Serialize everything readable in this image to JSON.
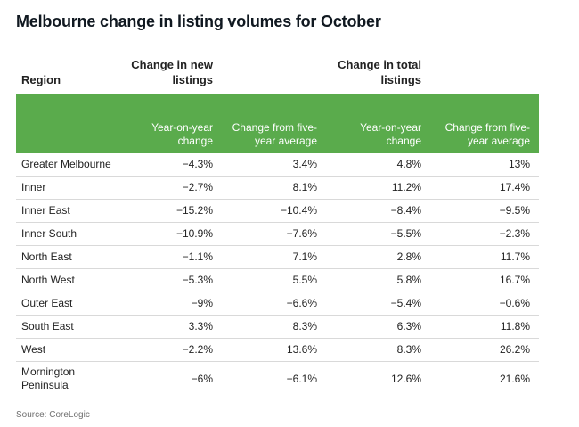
{
  "title": "Melbourne change in listing volumes for October",
  "source": "Source: CoreLogic",
  "chart_data": {
    "type": "table",
    "title": "Melbourne change in listing volumes for October",
    "columns": {
      "region": "Region",
      "group_new": "Change in new listings",
      "group_total": "Change in total listings",
      "new_yoy": "Year-on-year change",
      "new_5yr": "Change from five-year average",
      "total_yoy": "Year-on-year change",
      "total_5yr": "Change from five-year average"
    },
    "rows": [
      {
        "region": "Greater Melbourne",
        "new_yoy": "−4.3%",
        "new_5yr": "3.4%",
        "total_yoy": "4.8%",
        "total_5yr": "13%"
      },
      {
        "region": "Inner",
        "new_yoy": "−2.7%",
        "new_5yr": "8.1%",
        "total_yoy": "11.2%",
        "total_5yr": "17.4%"
      },
      {
        "region": "Inner East",
        "new_yoy": "−15.2%",
        "new_5yr": "−10.4%",
        "total_yoy": "−8.4%",
        "total_5yr": "−9.5%"
      },
      {
        "region": "Inner South",
        "new_yoy": "−10.9%",
        "new_5yr": "−7.6%",
        "total_yoy": "−5.5%",
        "total_5yr": "−2.3%"
      },
      {
        "region": "North East",
        "new_yoy": "−1.1%",
        "new_5yr": "7.1%",
        "total_yoy": "2.8%",
        "total_5yr": "11.7%"
      },
      {
        "region": "North West",
        "new_yoy": "−5.3%",
        "new_5yr": "5.5%",
        "total_yoy": "5.8%",
        "total_5yr": "16.7%"
      },
      {
        "region": "Outer East",
        "new_yoy": "−9%",
        "new_5yr": "−6.6%",
        "total_yoy": "−5.4%",
        "total_5yr": "−0.6%"
      },
      {
        "region": "South East",
        "new_yoy": "3.3%",
        "new_5yr": "8.3%",
        "total_yoy": "6.3%",
        "total_5yr": "11.8%"
      },
      {
        "region": "West",
        "new_yoy": "−2.2%",
        "new_5yr": "13.6%",
        "total_yoy": "8.3%",
        "total_5yr": "26.2%"
      },
      {
        "region": "Mornington Peninsula",
        "new_yoy": "−6%",
        "new_5yr": "−6.1%",
        "total_yoy": "12.6%",
        "total_5yr": "21.6%"
      }
    ]
  },
  "colors": {
    "header_band": "#5aab4c",
    "header_text": "#ffffff",
    "row_divider": "#d9d9d9"
  }
}
